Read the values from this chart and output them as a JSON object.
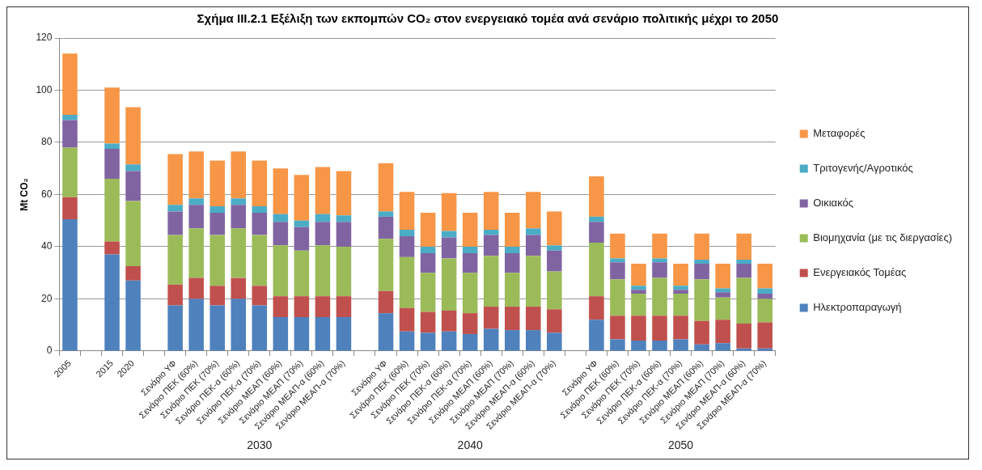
{
  "chart_data": {
    "type": "bar",
    "stacked": true,
    "title": "Σχήμα ΙΙΙ.2.1 Εξέλιξη των εκπομπών CO₂ στον ενεργειακό τομέα ανά σενάριο πολιτικής μέχρι το 2050",
    "ylabel": "Mt CO₂",
    "categories": [
      "2005",
      null,
      "2015",
      "2020",
      null,
      "Σενάριο ΥΦ",
      "Σενάριο ΠΕΚ (60%)",
      "Σενάριο ΠΕΚ (70%)",
      "Σενάριο ΠΕΚ-α (60%)",
      "Σενάριο ΠΕΚ-α (70%)",
      "Σενάριο ΜΕΑΠ (60%)",
      "Σενάριο ΜΕΑΠ (70%)",
      "Σενάριο ΜΕΑΠ-α (60%)",
      "Σενάριο ΜΕΑΠ-α (70%)",
      null,
      "Σενάριο ΥΦ",
      "Σενάριο ΠΕΚ (60%)",
      "Σενάριο ΠΕΚ (70%)",
      "Σενάριο ΠΕΚ-α (60%)",
      "Σενάριο ΠΕΚ-α (70%)",
      "Σενάριο ΜΕΑΠ (60%)",
      "Σενάριο ΜΕΑΠ (70%)",
      "Σενάριο ΜΕΑΠ-α (60%)",
      "Σενάριο ΜΕΑΠ-α (70%)",
      null,
      "Σενάριο ΥΦ",
      "Σενάριο ΠΕΚ (60%)",
      "Σενάριο ΠΕΚ (70%)",
      "Σενάριο ΠΕΚ-α (60%)",
      "Σενάριο ΠΕΚ-α (70%)",
      "Σενάριο ΜΕΑΠ (60%)",
      "Σενάριο ΜΕΑΠ (70%)",
      "Σενάριο ΜΕΑΠ-α (60%)",
      "Σενάριο ΜΕΑΠ-α (70%)"
    ],
    "series": [
      {
        "name": "Ηλεκτροπαραγωγή",
        "color": "#4f81bd",
        "values": [
          50.5,
          null,
          37,
          27,
          null,
          17.5,
          20,
          17.5,
          20,
          17.5,
          13,
          13,
          13,
          13,
          null,
          14.5,
          7.5,
          7,
          7.5,
          6.5,
          8.5,
          8,
          8,
          7,
          null,
          12,
          4.5,
          4,
          4,
          4.5,
          2.5,
          3,
          1,
          1
        ]
      },
      {
        "name": "Ενεργειακός Τομέας",
        "color": "#c0504d",
        "values": [
          8.5,
          null,
          5,
          5.5,
          null,
          8,
          8,
          7.5,
          8,
          7.5,
          8,
          8,
          8,
          8,
          null,
          8.5,
          9,
          8,
          8,
          8,
          8.5,
          9,
          9,
          9,
          null,
          9,
          9,
          9.5,
          9.5,
          9,
          9,
          9,
          9.5,
          10
        ]
      },
      {
        "name": "Βιομηχανία (με τις διεργασίες)",
        "color": "#9bbb59",
        "values": [
          19,
          null,
          24,
          25,
          null,
          19,
          19,
          19.5,
          19,
          19.5,
          19.5,
          17.5,
          19.5,
          19,
          null,
          20,
          19.5,
          15,
          20,
          15.5,
          19.5,
          13,
          19.5,
          14.5,
          null,
          20.5,
          14,
          8.5,
          14.5,
          8.5,
          16,
          8.5,
          17.5,
          9
        ]
      },
      {
        "name": "Οικιακός",
        "color": "#8064a2",
        "values": [
          10.5,
          null,
          11.5,
          11.5,
          null,
          9,
          9,
          8.5,
          9,
          8.5,
          9,
          9,
          9,
          9.5,
          null,
          8.5,
          8,
          7.5,
          8,
          7.5,
          8,
          7.5,
          8,
          8,
          null,
          8,
          6.5,
          1.5,
          6,
          1.5,
          6,
          2,
          5.5,
          2
        ]
      },
      {
        "name": "Τριτογενής/Αγροτικός",
        "color": "#4bacc6",
        "values": [
          2,
          null,
          2,
          2.5,
          null,
          2.5,
          2.5,
          2.5,
          2.5,
          2.5,
          3,
          2.5,
          3,
          2.5,
          null,
          2,
          2.5,
          2.5,
          2.5,
          2.5,
          2,
          2.5,
          2.5,
          2,
          null,
          2,
          1.5,
          1.5,
          1.5,
          1.5,
          1.5,
          1.5,
          1.5,
          2
        ]
      },
      {
        "name": "Μεταφορές",
        "color": "#f79646",
        "values": [
          23.5,
          null,
          21.5,
          22,
          null,
          19.5,
          18,
          17.5,
          18,
          17.5,
          17.5,
          17.5,
          18,
          17,
          null,
          18.5,
          14.5,
          13,
          14.5,
          13,
          14.5,
          13,
          14,
          13,
          null,
          15.5,
          9.5,
          8.5,
          9.5,
          8.5,
          10,
          9.5,
          10,
          9.5
        ]
      }
    ],
    "ylim": [
      0,
      120
    ],
    "yticks": [
      0,
      20,
      40,
      60,
      80,
      100,
      120
    ],
    "grid": "y",
    "legend": "right",
    "annotations": [
      "2030",
      "2040",
      "2050"
    ]
  }
}
